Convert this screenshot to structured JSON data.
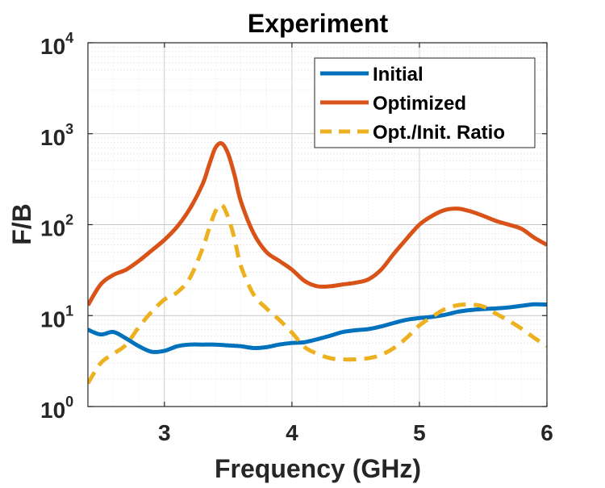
{
  "chart_data": {
    "type": "line",
    "title": "Experiment",
    "xlabel": "Frequency (GHz)",
    "ylabel": "F/B",
    "xlim": [
      2.4,
      6.0
    ],
    "ylim": [
      1,
      10000
    ],
    "yscale": "log",
    "grid": true,
    "minor_grid": true,
    "legend_position": "top-right",
    "x_ticks": [
      {
        "value": 3,
        "label": "3"
      },
      {
        "value": 4,
        "label": "4"
      },
      {
        "value": 5,
        "label": "5"
      },
      {
        "value": 6,
        "label": "6"
      }
    ],
    "y_ticks": [
      {
        "value": 1,
        "base": "10",
        "exp": "0"
      },
      {
        "value": 10,
        "base": "10",
        "exp": "1"
      },
      {
        "value": 100,
        "base": "10",
        "exp": "2"
      },
      {
        "value": 1000,
        "base": "10",
        "exp": "3"
      },
      {
        "value": 10000,
        "base": "10",
        "exp": "4"
      }
    ],
    "series": [
      {
        "name": "Initial",
        "color": "#0072BD",
        "dash": "solid",
        "x": [
          2.4,
          2.5,
          2.6,
          2.7,
          2.8,
          2.9,
          3.0,
          3.1,
          3.2,
          3.3,
          3.4,
          3.5,
          3.6,
          3.7,
          3.8,
          3.9,
          4.0,
          4.1,
          4.2,
          4.3,
          4.4,
          4.5,
          4.6,
          4.7,
          4.8,
          4.9,
          5.0,
          5.1,
          5.2,
          5.3,
          5.4,
          5.5,
          5.6,
          5.7,
          5.8,
          5.9,
          6.0
        ],
        "y": [
          7.0,
          6.2,
          6.6,
          5.6,
          4.6,
          4.0,
          4.1,
          4.6,
          4.8,
          4.8,
          4.8,
          4.7,
          4.6,
          4.4,
          4.5,
          4.8,
          5.0,
          5.1,
          5.5,
          6.0,
          6.6,
          6.9,
          7.1,
          7.6,
          8.3,
          9.0,
          9.4,
          9.7,
          10.2,
          11.0,
          11.5,
          11.8,
          12.0,
          12.3,
          12.8,
          13.3,
          13.2
        ]
      },
      {
        "name": "Optimized",
        "color": "#D95319",
        "dash": "solid",
        "x": [
          2.4,
          2.5,
          2.6,
          2.7,
          2.8,
          2.9,
          3.0,
          3.1,
          3.2,
          3.3,
          3.35,
          3.4,
          3.45,
          3.5,
          3.55,
          3.6,
          3.7,
          3.8,
          3.9,
          4.0,
          4.1,
          4.2,
          4.3,
          4.4,
          4.5,
          4.6,
          4.7,
          4.8,
          4.9,
          5.0,
          5.1,
          5.2,
          5.3,
          5.4,
          5.5,
          5.6,
          5.7,
          5.8,
          5.9,
          6.0
        ],
        "y": [
          13,
          22,
          28,
          32,
          40,
          52,
          68,
          95,
          150,
          280,
          450,
          700,
          780,
          600,
          350,
          180,
          80,
          50,
          40,
          32,
          24,
          21,
          21,
          22,
          23,
          25,
          32,
          48,
          70,
          100,
          125,
          145,
          150,
          140,
          125,
          110,
          100,
          90,
          72,
          60
        ]
      },
      {
        "name": "Opt./Init. Ratio",
        "color": "#EDB120",
        "dash": "dashed",
        "x": [
          2.4,
          2.5,
          2.6,
          2.7,
          2.8,
          2.9,
          3.0,
          3.1,
          3.2,
          3.3,
          3.35,
          3.4,
          3.45,
          3.5,
          3.55,
          3.6,
          3.7,
          3.8,
          3.9,
          4.0,
          4.1,
          4.2,
          4.3,
          4.4,
          4.5,
          4.6,
          4.7,
          4.8,
          4.9,
          5.0,
          5.1,
          5.2,
          5.3,
          5.4,
          5.5,
          5.6,
          5.7,
          5.8,
          5.9,
          6.0
        ],
        "y": [
          1.8,
          3.0,
          3.8,
          4.8,
          7.5,
          11,
          15,
          18,
          26,
          55,
          90,
          140,
          165,
          120,
          70,
          35,
          17,
          12,
          9,
          6.5,
          4.5,
          3.8,
          3.4,
          3.3,
          3.3,
          3.4,
          3.7,
          4.4,
          5.7,
          7.8,
          9.7,
          11.8,
          13.0,
          13.2,
          12.6,
          10.5,
          8.8,
          7.2,
          5.7,
          4.6
        ]
      }
    ]
  }
}
